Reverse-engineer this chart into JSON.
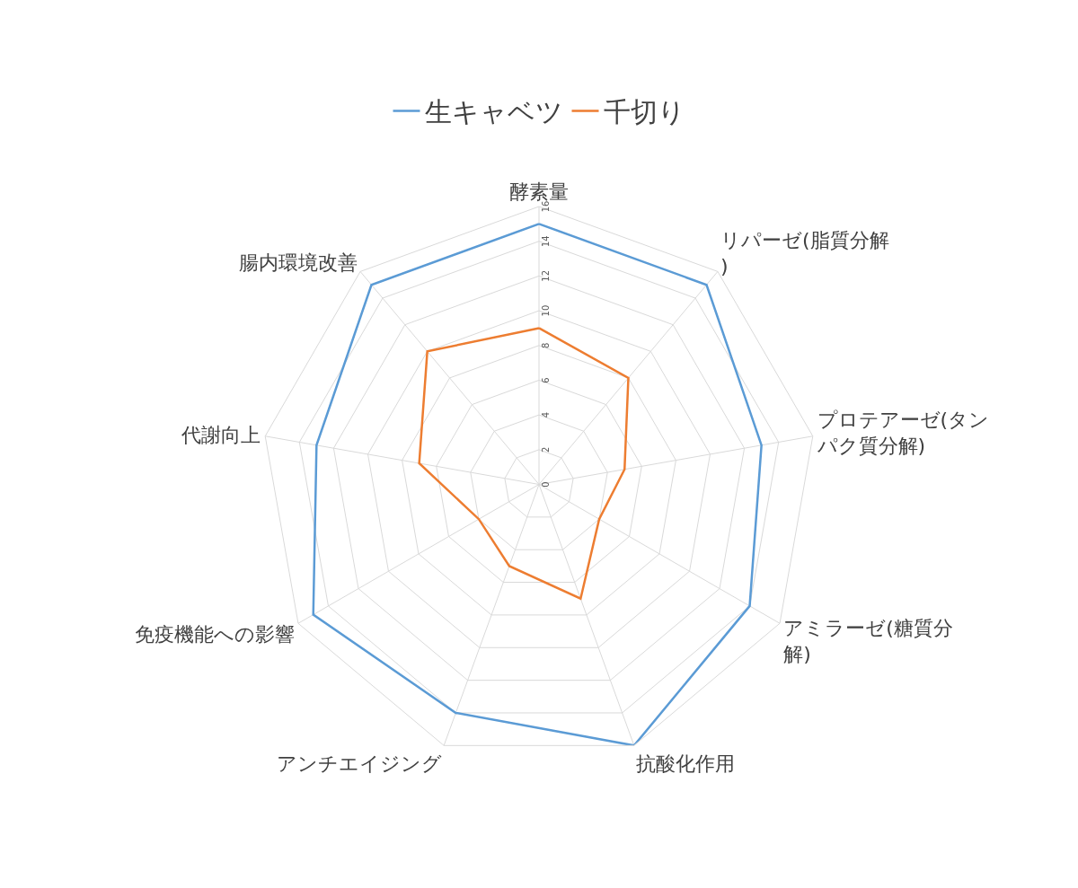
{
  "chart_data": {
    "type": "radar",
    "categories": [
      "酵素量",
      "リパーゼ(脂質分解)",
      "プロテアーゼ(タンパク質分解)",
      "アミラーゼ(糖質分解)",
      "抗酸化作用",
      "アンチエイジング",
      "免疫機能への影響",
      "代謝向上",
      "腸内環境改善"
    ],
    "series": [
      {
        "name": "生キャベツ",
        "color": "#5b9bd5",
        "values": [
          15,
          15,
          13,
          14,
          16,
          14,
          15,
          13,
          15
        ]
      },
      {
        "name": "千切り",
        "color": "#ed7d31",
        "values": [
          9,
          8,
          5,
          4,
          7,
          5,
          4,
          7,
          10
        ]
      }
    ],
    "ylim": [
      0,
      16
    ],
    "yticks": [
      0,
      2,
      4,
      6,
      8,
      10,
      12,
      14,
      16
    ],
    "grid": true,
    "legend": "top",
    "marker": "none"
  }
}
